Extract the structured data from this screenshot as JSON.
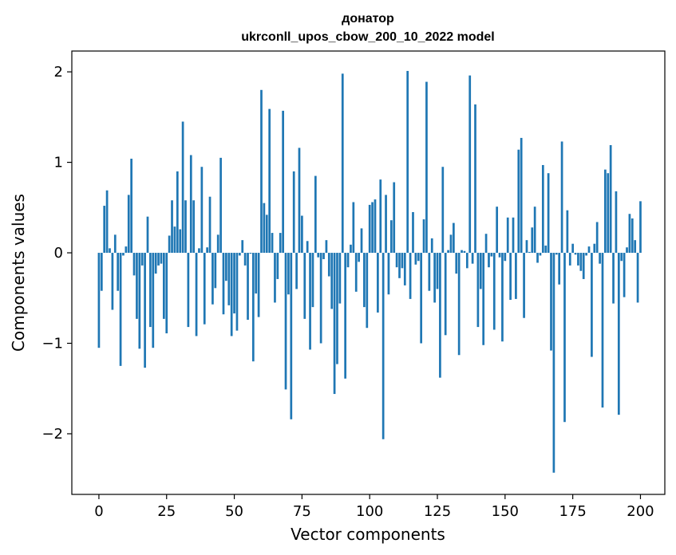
{
  "chart_data": {
    "type": "bar",
    "title": "донатор",
    "subtitle": "ukrconll_upos_cbow_200_10_2022 model",
    "xlabel": "Vector components",
    "ylabel": "Components values",
    "xlim": [
      -10,
      209
    ],
    "ylim": [
      -2.67,
      2.23
    ],
    "xticks": [
      0,
      25,
      50,
      75,
      100,
      125,
      150,
      175,
      200
    ],
    "xtick_labels": [
      "0",
      "25",
      "50",
      "75",
      "100",
      "125",
      "150",
      "175",
      "200"
    ],
    "yticks": [
      -2,
      -1,
      0,
      1,
      2
    ],
    "ytick_labels": [
      "−2",
      "−1",
      "0",
      "1",
      "2"
    ],
    "grid": false,
    "bar_color": "#1f77b4",
    "values": [
      -1.05,
      -0.42,
      0.52,
      0.69,
      0.05,
      -0.63,
      0.2,
      -0.42,
      -1.25,
      -0.03,
      0.07,
      0.64,
      1.04,
      -0.25,
      -0.73,
      -1.06,
      -0.14,
      -1.27,
      0.4,
      -0.82,
      -1.05,
      -0.23,
      -0.14,
      -0.12,
      -0.73,
      -0.89,
      0.19,
      0.58,
      0.29,
      0.9,
      0.26,
      1.45,
      0.58,
      -0.82,
      1.08,
      0.58,
      -0.92,
      0.05,
      0.95,
      -0.79,
      0.06,
      0.62,
      -0.57,
      -0.39,
      0.2,
      1.05,
      -0.68,
      -0.31,
      -0.58,
      -0.92,
      -0.67,
      -0.86,
      -0.03,
      0.14,
      -0.14,
      -0.74,
      -0.01,
      -1.2,
      -0.45,
      -0.71,
      1.8,
      0.55,
      0.42,
      1.59,
      0.22,
      -0.55,
      -0.29,
      0.22,
      1.57,
      -1.51,
      -0.46,
      -1.84,
      0.9,
      -0.4,
      1.16,
      0.41,
      -0.73,
      0.13,
      -1.07,
      -0.6,
      0.85,
      -0.05,
      -1.0,
      -0.07,
      0.14,
      -0.26,
      -0.62,
      -1.56,
      -1.23,
      -0.56,
      1.98,
      -1.39,
      -0.16,
      0.09,
      0.56,
      -0.43,
      -0.1,
      0.27,
      -0.6,
      -0.83,
      0.53,
      0.56,
      0.59,
      -0.66,
      0.81,
      -2.06,
      0.64,
      -0.46,
      0.36,
      0.78,
      -0.16,
      -0.28,
      -0.17,
      -0.36,
      2.01,
      -0.51,
      0.45,
      -0.13,
      -0.09,
      -1.0,
      0.37,
      1.89,
      -0.42,
      0.16,
      -0.55,
      -0.4,
      -1.38,
      0.95,
      -0.91,
      0.03,
      0.2,
      0.33,
      -0.23,
      -1.13,
      0.03,
      0.02,
      -0.17,
      1.96,
      -0.12,
      1.64,
      -0.82,
      -0.4,
      -1.02,
      0.21,
      -0.16,
      -0.04,
      -0.85,
      0.51,
      -0.05,
      -0.98,
      -0.09,
      0.39,
      -0.52,
      0.39,
      -0.51,
      1.14,
      1.27,
      -0.72,
      0.14,
      0.01,
      0.28,
      0.51,
      -0.11,
      -0.03,
      0.97,
      0.08,
      0.88,
      -1.08,
      -2.43,
      -0.02,
      -0.35,
      1.23,
      -1.87,
      0.47,
      -0.14,
      0.1,
      -0.02,
      -0.14,
      -0.2,
      -0.29,
      -0.03,
      0.07,
      -1.15,
      0.1,
      0.34,
      -0.12,
      -1.71,
      0.92,
      0.88,
      1.19,
      -0.56,
      0.68,
      -1.79,
      -0.09,
      -0.49,
      0.06,
      0.43,
      0.38,
      0.14,
      -0.55,
      0.57
    ]
  }
}
